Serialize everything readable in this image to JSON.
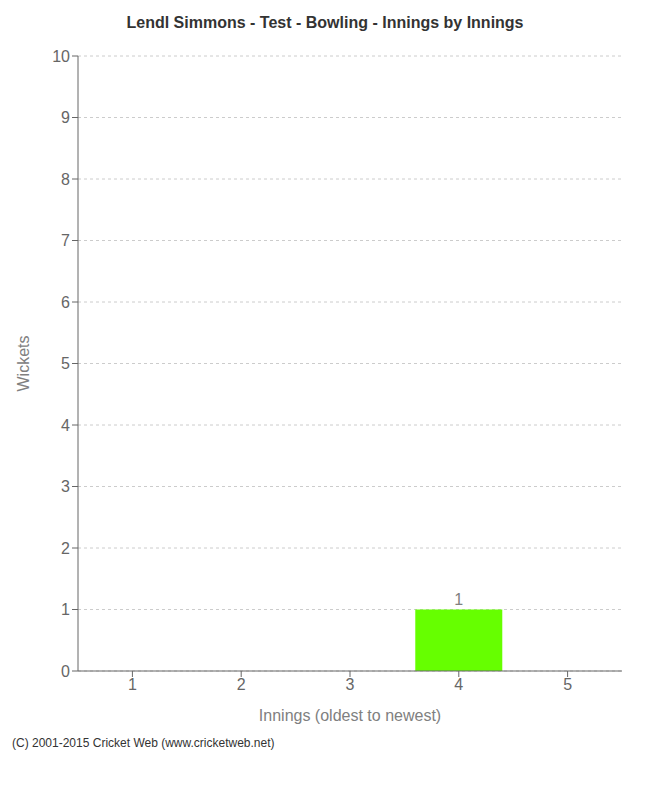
{
  "chart_data": {
    "type": "bar",
    "title": "Lendl Simmons - Test - Bowling - Innings by Innings",
    "x_label": "Innings (oldest to newest)",
    "y_label": "Wickets",
    "categories": [
      1,
      2,
      3,
      4,
      5
    ],
    "values": [
      0,
      0,
      0,
      1,
      0
    ],
    "color": "#66ff00",
    "ylim": [
      0,
      10
    ],
    "yticks": [
      0,
      1,
      2,
      3,
      4,
      5,
      6,
      7,
      8,
      9,
      10
    ],
    "grid": true,
    "data_labels": true,
    "annotations": [
      "(C) 2001-2015 Cricket Web (www.cricketweb.net)"
    ]
  }
}
